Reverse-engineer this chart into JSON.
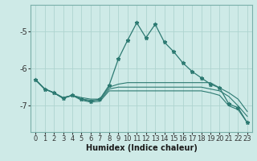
{
  "xlabel": "Humidex (Indice chaleur)",
  "bg_color": "#ceeae7",
  "grid_color": "#aed4d0",
  "line_color": "#2d7a72",
  "spine_color": "#7ab0aa",
  "xlim": [
    -0.5,
    23.5
  ],
  "ylim": [
    -7.7,
    -4.3
  ],
  "yticks": [
    -7,
    -6,
    -5
  ],
  "xticks": [
    0,
    1,
    2,
    3,
    4,
    5,
    6,
    7,
    8,
    9,
    10,
    11,
    12,
    13,
    14,
    15,
    16,
    17,
    18,
    19,
    20,
    21,
    22,
    23
  ],
  "series": [
    {
      "x": [
        0,
        1,
        2,
        3,
        4,
        5,
        6,
        7,
        8,
        9,
        10,
        11,
        12,
        13,
        14,
        15,
        16,
        17,
        18,
        19,
        20,
        21,
        22,
        23
      ],
      "y": [
        -6.3,
        -6.55,
        -6.65,
        -6.8,
        -6.72,
        -6.82,
        -6.88,
        -6.82,
        -6.45,
        -5.75,
        -5.25,
        -4.78,
        -5.18,
        -4.82,
        -5.3,
        -5.55,
        -5.85,
        -6.08,
        -6.25,
        -6.42,
        -6.52,
        -6.95,
        -7.05,
        -7.45
      ],
      "marker": true
    },
    {
      "x": [
        0,
        1,
        2,
        3,
        4,
        5,
        6,
        7,
        8,
        9,
        10,
        11,
        12,
        13,
        14,
        15,
        16,
        17,
        18,
        19,
        20,
        21,
        22,
        23
      ],
      "y": [
        -6.3,
        -6.55,
        -6.65,
        -6.78,
        -6.72,
        -6.78,
        -6.82,
        -6.82,
        -6.5,
        -6.42,
        -6.38,
        -6.38,
        -6.38,
        -6.38,
        -6.38,
        -6.38,
        -6.38,
        -6.38,
        -6.38,
        -6.38,
        -6.52,
        -6.65,
        -6.82,
        -7.15
      ],
      "marker": false
    },
    {
      "x": [
        0,
        1,
        2,
        3,
        4,
        5,
        6,
        7,
        8,
        9,
        10,
        11,
        12,
        13,
        14,
        15,
        16,
        17,
        18,
        19,
        20,
        21,
        22,
        23
      ],
      "y": [
        -6.3,
        -6.55,
        -6.65,
        -6.78,
        -6.72,
        -6.82,
        -6.85,
        -6.85,
        -6.55,
        -6.5,
        -6.5,
        -6.5,
        -6.5,
        -6.5,
        -6.5,
        -6.5,
        -6.5,
        -6.5,
        -6.5,
        -6.55,
        -6.6,
        -6.75,
        -7.0,
        -7.28
      ],
      "marker": false
    },
    {
      "x": [
        0,
        1,
        2,
        3,
        4,
        5,
        6,
        7,
        8,
        9,
        10,
        11,
        12,
        13,
        14,
        15,
        16,
        17,
        18,
        19,
        20,
        21,
        22,
        23
      ],
      "y": [
        -6.3,
        -6.55,
        -6.65,
        -6.8,
        -6.72,
        -6.85,
        -6.9,
        -6.88,
        -6.6,
        -6.6,
        -6.6,
        -6.6,
        -6.6,
        -6.6,
        -6.6,
        -6.6,
        -6.6,
        -6.6,
        -6.6,
        -6.65,
        -6.72,
        -7.0,
        -7.1,
        -7.45
      ],
      "marker": false
    }
  ]
}
